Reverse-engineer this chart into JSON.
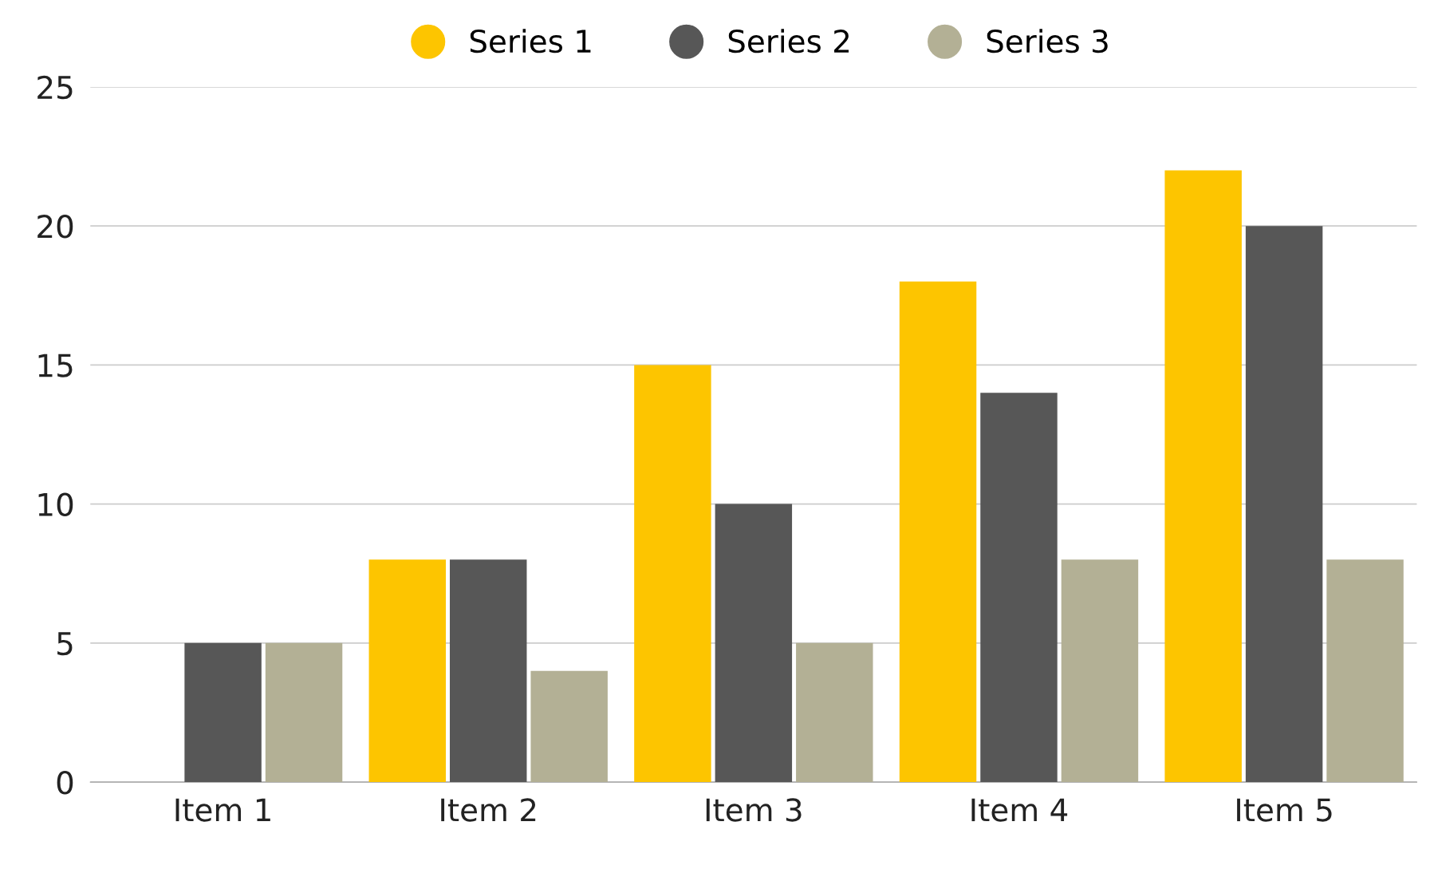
{
  "chart_data": {
    "type": "bar",
    "categories": [
      "Item 1",
      "Item 2",
      "Item 3",
      "Item 4",
      "Item 5"
    ],
    "series": [
      {
        "name": "Series 1",
        "color": "#fdc500",
        "values": [
          0,
          8,
          15,
          18,
          22
        ]
      },
      {
        "name": "Series 2",
        "color": "#575757",
        "values": [
          5,
          8,
          10,
          14,
          20
        ]
      },
      {
        "name": "Series 3",
        "color": "#b3b095",
        "values": [
          5,
          4,
          5,
          8,
          8
        ]
      }
    ],
    "ylim": [
      0,
      25
    ],
    "yticks": [
      0,
      5,
      10,
      15,
      20,
      25
    ],
    "grid": "y",
    "legend": "top"
  }
}
